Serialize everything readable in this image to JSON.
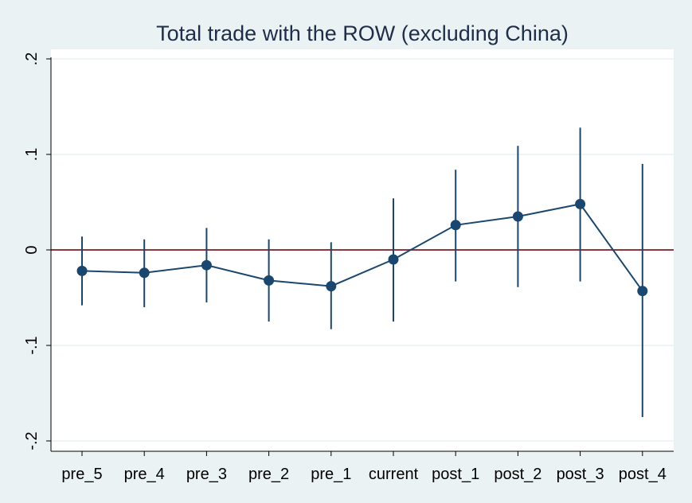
{
  "chart_data": {
    "type": "scatter",
    "title": "Total trade with the ROW (excluding China)",
    "xlabel": "",
    "ylabel": "",
    "categories": [
      "pre_5",
      "pre_4",
      "pre_3",
      "pre_2",
      "pre_1",
      "current",
      "post_1",
      "post_2",
      "post_3",
      "post_4"
    ],
    "series": [
      {
        "values": [
          -0.022,
          -0.024,
          -0.016,
          -0.032,
          -0.038,
          -0.01,
          0.026,
          0.035,
          0.048,
          -0.043
        ],
        "ci_lower": [
          -0.058,
          -0.06,
          -0.055,
          -0.075,
          -0.083,
          -0.075,
          -0.033,
          -0.039,
          -0.033,
          -0.175
        ],
        "ci_upper": [
          0.014,
          0.011,
          0.023,
          0.011,
          0.008,
          0.054,
          0.084,
          0.109,
          0.128,
          0.09
        ]
      }
    ],
    "yticks": [
      -0.2,
      -0.1,
      0,
      0.1,
      0.2
    ],
    "ytick_labels": [
      "-.2",
      "-.1",
      "0",
      ".1",
      ".2"
    ],
    "ylim": [
      -0.21,
      0.21
    ],
    "reference_line": 0,
    "grid": true,
    "colors": {
      "background": "#eaf2f3",
      "plot_area": "#ffffff",
      "grid": "#eaf2f3",
      "marker": "#1a476f",
      "reference_line": "#90353b",
      "title": "#1e2d4a"
    }
  }
}
